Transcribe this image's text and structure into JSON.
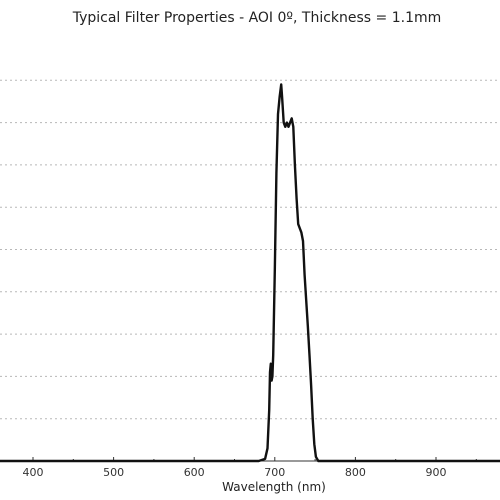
{
  "chart_data": {
    "type": "line",
    "title": "Typical Filter Properties - AOI 0º, Thickness = 1.1mm",
    "xlabel": "Wavelength (nm)",
    "ylabel": "",
    "x_ticks": [
      400,
      500,
      600,
      700,
      800,
      900
    ],
    "xlim": [
      350,
      1000
    ],
    "ylim": [
      0,
      100
    ],
    "y_grid": [
      10,
      20,
      30,
      40,
      50,
      60,
      70,
      80,
      90
    ],
    "grid": true,
    "series": [
      {
        "color": "#111111",
        "points": [
          [
            350,
            0
          ],
          [
            600,
            0
          ],
          [
            680,
            0
          ],
          [
            688,
            0.5
          ],
          [
            691,
            3
          ],
          [
            693,
            12
          ],
          [
            694,
            21
          ],
          [
            695,
            23
          ],
          [
            696,
            19
          ],
          [
            697,
            20
          ],
          [
            698,
            25
          ],
          [
            700,
            45
          ],
          [
            702,
            68
          ],
          [
            704,
            82
          ],
          [
            706,
            86
          ],
          [
            708,
            89
          ],
          [
            709,
            86
          ],
          [
            711,
            80
          ],
          [
            713,
            79
          ],
          [
            715,
            80
          ],
          [
            717,
            79
          ],
          [
            719,
            80
          ],
          [
            721,
            81
          ],
          [
            723,
            79
          ],
          [
            725,
            70
          ],
          [
            727,
            62
          ],
          [
            729,
            56
          ],
          [
            731,
            55
          ],
          [
            733,
            54
          ],
          [
            735,
            52
          ],
          [
            737,
            44
          ],
          [
            739,
            38
          ],
          [
            741,
            32
          ],
          [
            743,
            25
          ],
          [
            745,
            18
          ],
          [
            747,
            10
          ],
          [
            749,
            4
          ],
          [
            751,
            1
          ],
          [
            754,
            0
          ],
          [
            1000,
            0
          ]
        ]
      }
    ]
  }
}
